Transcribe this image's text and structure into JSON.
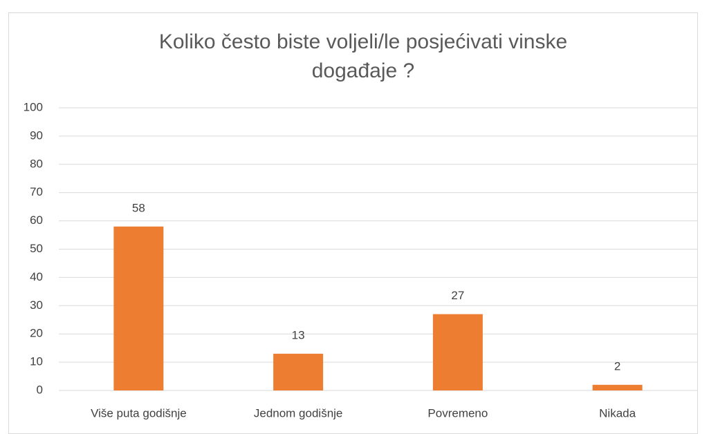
{
  "chart_data": {
    "type": "bar",
    "title": "Koliko često biste voljeli/le posjećivati vinske događaje ?",
    "categories": [
      "Više puta godišnje",
      "Jednom godišnje",
      "Povremeno",
      "Nikada"
    ],
    "values": [
      58,
      13,
      27,
      2
    ],
    "color": "#ed7d31",
    "ylim": [
      0,
      100
    ],
    "yticks": [
      0,
      10,
      20,
      30,
      40,
      50,
      60,
      70,
      80,
      90,
      100
    ],
    "grid": true
  }
}
